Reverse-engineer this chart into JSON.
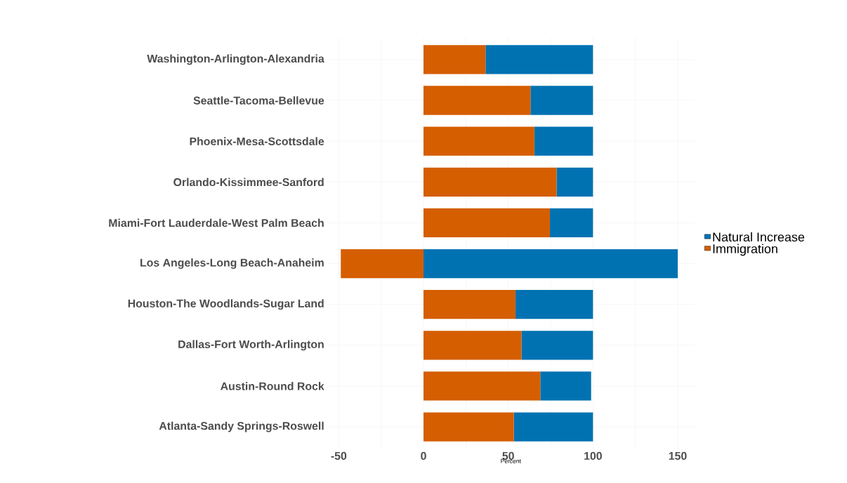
{
  "chart_data": {
    "type": "bar",
    "orientation": "horizontal",
    "stacked": true,
    "xlabel": "Percent",
    "categories": [
      "Washington-Arlington-Alexandria",
      "Seattle-Tacoma-Bellevue",
      "Phoenix-Mesa-Scottsdale",
      "Orlando-Kissimmee-Sanford",
      "Miami-Fort Lauderdale-West Palm Beach",
      "Los Angeles-Long Beach-Anaheim",
      "Houston-The Woodlands-Sugar Land",
      "Dallas-Fort Worth-Arlington",
      "Austin-Round Rock",
      "Atlanta-Sandy Springs-Roswell"
    ],
    "series": [
      {
        "name": "Immigration",
        "color": "#d55e00",
        "values": [
          36.6,
          63.1,
          65.4,
          78.5,
          74.6,
          -48.8,
          54.3,
          57.8,
          68.9,
          53.3
        ]
      },
      {
        "name": "Natural Increase",
        "color": "#0072b2",
        "values": [
          63.4,
          36.9,
          34.6,
          21.5,
          25.4,
          150,
          45.7,
          42.2,
          30,
          46.7
        ]
      }
    ],
    "xlim": [
      -57,
      160
    ],
    "xticks": [
      -50,
      {
        "value": -25,
        "label": null
      },
      0,
      {
        "value": 25,
        "label": null
      },
      50,
      {
        "value": 75,
        "label": null
      },
      100,
      {
        "value": 125,
        "label": null
      },
      150
    ],
    "grid": true,
    "legend": "right"
  }
}
